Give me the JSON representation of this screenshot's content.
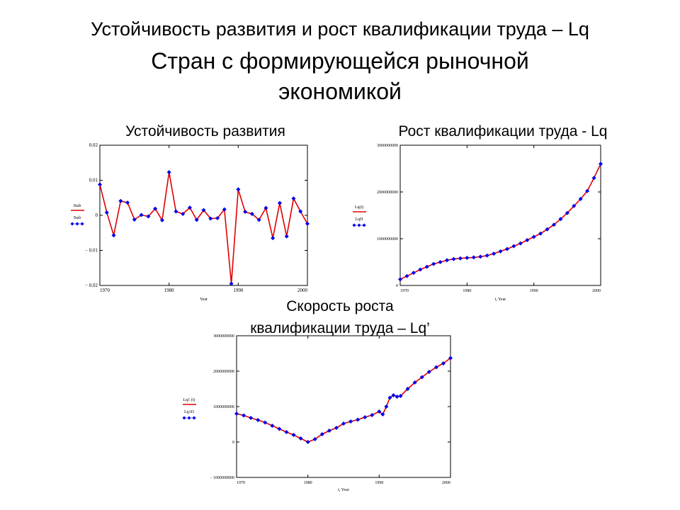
{
  "slide": {
    "title_line1": "Устойчивость развития и рост квалификации труда – Lq",
    "title_line2": "Стран с формирующейся рыночной",
    "title_line3": "экономикой",
    "chart1_title": "Устойчивость развития",
    "chart2_title": "Рост квалификации труда - Lq",
    "chart3_title_line1": "Скорость роста",
    "chart3_title_line2": "квалификации труда – Lq’"
  },
  "colors": {
    "line": "#e00000",
    "points": "#0000ee",
    "axis": "#000000"
  },
  "chart_data": [
    {
      "type": "line",
      "title": "Устойчивость развития",
      "xlabel": "Year",
      "xlim": [
        1970,
        2000
      ],
      "ylim": [
        -0.02,
        0.02
      ],
      "xticks": [
        1970,
        1980,
        1990,
        2000
      ],
      "xtick_labels": [
        "1970",
        "1980",
        "1990",
        "2000"
      ],
      "yticks": [
        -0.02,
        -0.01,
        0,
        0.01,
        0.02
      ],
      "ytick_labels": [
        "− 0.02",
        "− 0.01",
        "0",
        "0.01",
        "0.02"
      ],
      "legend": [
        "Stab",
        "Stab"
      ],
      "legend_placement": "left",
      "grid": false,
      "x": [
        1970,
        1971,
        1972,
        1973,
        1974,
        1975,
        1976,
        1977,
        1978,
        1979,
        1980,
        1981,
        1982,
        1983,
        1984,
        1985,
        1986,
        1987,
        1988,
        1989,
        1990,
        1991,
        1992,
        1993,
        1994,
        1995,
        1996,
        1997,
        1998,
        1999,
        2000
      ],
      "series": [
        {
          "style": "line",
          "values": [
            0.0088,
            0.0008,
            -0.0057,
            0.0041,
            0.0036,
            -0.0012,
            0.0001,
            -0.0003,
            0.0019,
            -0.0014,
            0.0123,
            0.0011,
            0.0004,
            0.0022,
            -0.0013,
            0.0015,
            -0.0009,
            -0.0008,
            0.0017,
            -0.0195,
            0.0074,
            0.001,
            0.0004,
            -0.0013,
            0.0021,
            -0.0065,
            0.0035,
            -0.006,
            0.0048,
            0.0011,
            -0.0024
          ]
        },
        {
          "style": "points",
          "values": [
            0.0088,
            0.0008,
            -0.0057,
            0.0041,
            0.0036,
            -0.0012,
            0.0001,
            -0.0003,
            0.0019,
            -0.0014,
            0.0123,
            0.0011,
            0.0004,
            0.0022,
            -0.0013,
            0.0015,
            -0.0009,
            -0.0008,
            0.0017,
            -0.0195,
            0.0074,
            0.001,
            0.0004,
            -0.0013,
            0.0021,
            -0.0065,
            0.0035,
            -0.006,
            0.0048,
            0.0011,
            -0.0024
          ]
        }
      ]
    },
    {
      "type": "line",
      "title": "Рост квалификации труда - Lq",
      "xlabel": "t, Year",
      "xlim": [
        1970,
        2000
      ],
      "ylim": [
        0,
        3000000000
      ],
      "xticks": [
        1970,
        1980,
        1990,
        2000
      ],
      "xtick_labels": [
        "1970",
        "1980",
        "1990",
        "2000"
      ],
      "yticks": [
        0,
        1000000000,
        2000000000,
        3000000000
      ],
      "ytick_labels": [
        "0",
        "1000000000",
        "2000000000",
        "3000000000"
      ],
      "legend": [
        "Lq(t)",
        "LqD"
      ],
      "legend_placement": "left",
      "grid": false,
      "x": [
        1970,
        1971,
        1972,
        1973,
        1974,
        1975,
        1976,
        1977,
        1978,
        1979,
        1980,
        1981,
        1982,
        1983,
        1984,
        1985,
        1986,
        1987,
        1988,
        1989,
        1990,
        1991,
        1992,
        1993,
        1994,
        1995,
        1996,
        1997,
        1998,
        1999,
        2000
      ],
      "series": [
        {
          "style": "line",
          "values": [
            130000000,
            200000000,
            270000000,
            340000000,
            400000000,
            460000000,
            500000000,
            540000000,
            565000000,
            580000000,
            590000000,
            600000000,
            615000000,
            640000000,
            680000000,
            730000000,
            780000000,
            840000000,
            900000000,
            970000000,
            1040000000,
            1110000000,
            1200000000,
            1300000000,
            1420000000,
            1550000000,
            1700000000,
            1850000000,
            2020000000,
            2300000000,
            2600000000
          ]
        },
        {
          "style": "points",
          "values": [
            130000000,
            200000000,
            270000000,
            340000000,
            400000000,
            460000000,
            500000000,
            540000000,
            565000000,
            580000000,
            590000000,
            600000000,
            615000000,
            640000000,
            680000000,
            730000000,
            780000000,
            840000000,
            900000000,
            970000000,
            1040000000,
            1110000000,
            1200000000,
            1300000000,
            1420000000,
            1550000000,
            1700000000,
            1850000000,
            2020000000,
            2300000000,
            2600000000
          ]
        }
      ]
    },
    {
      "type": "line",
      "title": "Скорость роста квалификации труда – Lq’",
      "xlabel": "t, Year",
      "xlim": [
        1970,
        2000
      ],
      "ylim": [
        -1000000000,
        3000000000
      ],
      "xticks": [
        1970,
        1980,
        1990,
        2000
      ],
      "xtick_labels": [
        "1970",
        "1980",
        "1990",
        "2000"
      ],
      "yticks": [
        -1000000000,
        0,
        1000000000,
        2000000000,
        3000000000
      ],
      "ytick_labels": [
        "− 1000000000",
        "0",
        "1000000000",
        "2000000000",
        "3000000000"
      ],
      "legend": [
        "Lq1 (t)",
        "Lq1D"
      ],
      "legend_placement": "left",
      "grid": false,
      "x": [
        1970,
        1971,
        1972,
        1973,
        1974,
        1975,
        1976,
        1977,
        1978,
        1979,
        1980,
        1981,
        1982,
        1983,
        1984,
        1985,
        1986,
        1987,
        1988,
        1989,
        1990,
        1990.5,
        1991,
        1991.5,
        1992,
        1992.5,
        1993,
        1994,
        1995,
        1996,
        1997,
        1998,
        1999,
        2000
      ],
      "series": [
        {
          "style": "line",
          "values": [
            800000000,
            750000000,
            680000000,
            620000000,
            550000000,
            460000000,
            370000000,
            280000000,
            200000000,
            100000000,
            0,
            80000000,
            220000000,
            320000000,
            400000000,
            520000000,
            580000000,
            630000000,
            700000000,
            760000000,
            860000000,
            780000000,
            1000000000,
            1250000000,
            1320000000,
            1280000000,
            1300000000,
            1500000000,
            1680000000,
            1830000000,
            1980000000,
            2110000000,
            2220000000,
            2370000000
          ]
        },
        {
          "style": "points",
          "values": [
            800000000,
            750000000,
            680000000,
            620000000,
            550000000,
            460000000,
            370000000,
            280000000,
            200000000,
            100000000,
            0,
            80000000,
            220000000,
            320000000,
            400000000,
            520000000,
            580000000,
            630000000,
            700000000,
            760000000,
            860000000,
            780000000,
            1000000000,
            1250000000,
            1320000000,
            1280000000,
            1300000000,
            1500000000,
            1680000000,
            1830000000,
            1980000000,
            2110000000,
            2220000000,
            2370000000
          ]
        }
      ]
    }
  ]
}
